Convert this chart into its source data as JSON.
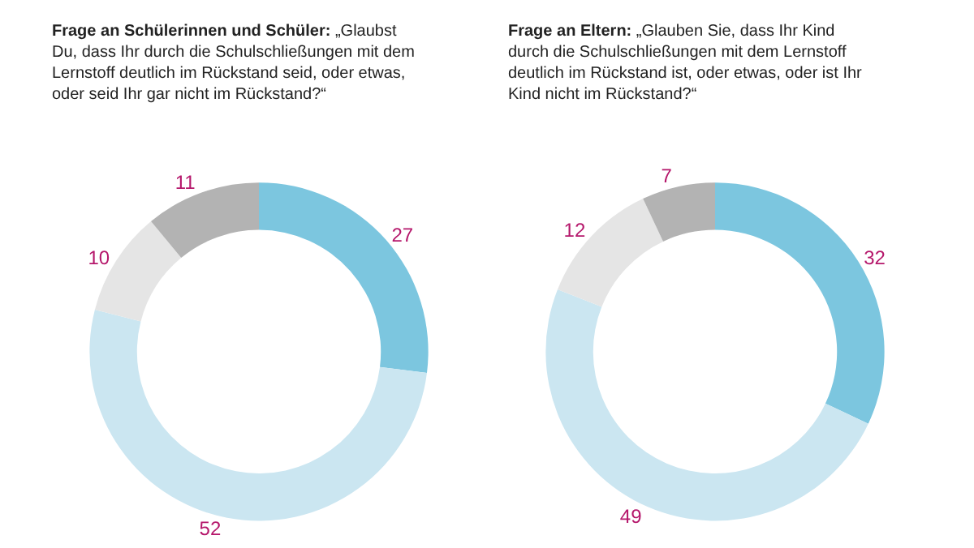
{
  "chart_data": [
    {
      "type": "donut",
      "title": "Frage an Schülerinnen und Schüler:",
      "subtitle": "„Glaubst Du, dass Ihr durch die Schulschließungen mit dem Lernstoff deutlich im Rückstand seid, oder etwas, oder seid Ihr gar nicht im Rückstand?“",
      "categories": [
        null,
        null,
        null,
        null
      ],
      "values": [
        27,
        52,
        10,
        11
      ],
      "colors": [
        "#7cc6df",
        "#cbe6f1",
        "#e5e5e5",
        "#b3b3b3"
      ],
      "data_labels": true
    },
    {
      "type": "donut",
      "title": "Frage an Eltern:",
      "subtitle": "„Glauben Sie, dass Ihr Kind durch die Schulschließungen mit dem Lernstoff deutlich im Rückstand ist, oder etwas, oder ist Ihr Kind nicht im Rückstand?“",
      "categories": [
        null,
        null,
        null,
        null
      ],
      "values": [
        32,
        49,
        12,
        7
      ],
      "colors": [
        "#7cc6df",
        "#cbe6f1",
        "#e5e5e5",
        "#b3b3b3"
      ],
      "data_labels": true
    }
  ]
}
